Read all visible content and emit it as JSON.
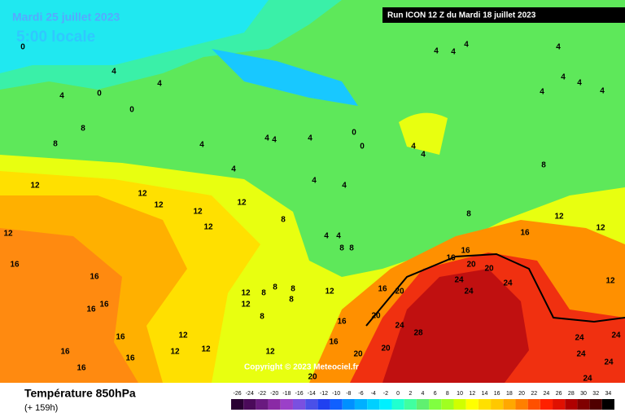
{
  "header": {
    "valid_date": "Mardi 25 juillet 2023",
    "local_time": "5:00 locale",
    "run": "Run ICON 12 Z du Mardi 18 juillet 2023"
  },
  "copyright": "Copyright © 2023 Meteociel.fr",
  "footer": {
    "title": "Température 850hPa",
    "lead": "(+ 159h)"
  },
  "legend": {
    "values": [
      -26,
      -24,
      -22,
      -20,
      -18,
      -16,
      -14,
      -12,
      -10,
      -8,
      -6,
      -4,
      -2,
      0,
      2,
      4,
      6,
      8,
      10,
      12,
      14,
      16,
      18,
      20,
      22,
      24,
      26,
      28,
      30,
      32,
      34
    ],
    "colors": [
      "#2a0033",
      "#4b0a5a",
      "#6a1a80",
      "#8a2aa5",
      "#9b40c8",
      "#7a50e0",
      "#4a50e8",
      "#2040f0",
      "#1060ff",
      "#0090ff",
      "#00b0ff",
      "#00d0ff",
      "#00f0ff",
      "#20ffd0",
      "#40ffa0",
      "#60f070",
      "#80ff40",
      "#a0ff20",
      "#d0ff00",
      "#ffff00",
      "#ffe000",
      "#ffc800",
      "#ffa800",
      "#ff8000",
      "#ff5000",
      "#ff2000",
      "#e01000",
      "#b00000",
      "#800000",
      "#500000",
      "#000000"
    ]
  },
  "map_labels": [
    0,
    0,
    0,
    0,
    0,
    4,
    4,
    4,
    4,
    4,
    4,
    4,
    4,
    4,
    4,
    4,
    4,
    4,
    4,
    4,
    4,
    4,
    4,
    4,
    4,
    4,
    4,
    8,
    8,
    8,
    8,
    8,
    8,
    12,
    12,
    12,
    12,
    12,
    12,
    12,
    12,
    12,
    12,
    12,
    12,
    12,
    12,
    12,
    12,
    12,
    16,
    16,
    16,
    16,
    16,
    16,
    16,
    16,
    16,
    16,
    16,
    16,
    16,
    8,
    8,
    8,
    8,
    8,
    8,
    20,
    20,
    20,
    20,
    20,
    20,
    20,
    16,
    24,
    24,
    24,
    24,
    28,
    24,
    24,
    24,
    24,
    24
  ]
}
